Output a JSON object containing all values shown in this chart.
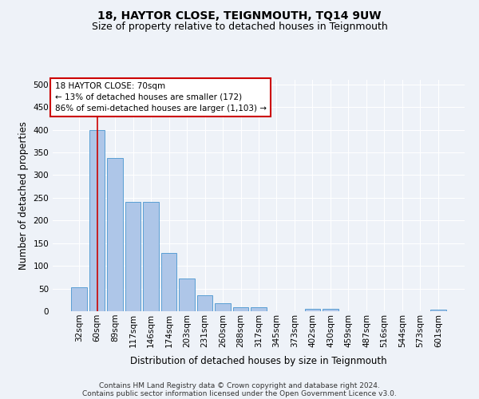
{
  "title": "18, HAYTOR CLOSE, TEIGNMOUTH, TQ14 9UW",
  "subtitle": "Size of property relative to detached houses in Teignmouth",
  "xlabel": "Distribution of detached houses by size in Teignmouth",
  "ylabel": "Number of detached properties",
  "categories": [
    "32sqm",
    "60sqm",
    "89sqm",
    "117sqm",
    "146sqm",
    "174sqm",
    "203sqm",
    "231sqm",
    "260sqm",
    "288sqm",
    "317sqm",
    "345sqm",
    "373sqm",
    "402sqm",
    "430sqm",
    "459sqm",
    "487sqm",
    "516sqm",
    "544sqm",
    "573sqm",
    "601sqm"
  ],
  "values": [
    52,
    400,
    338,
    241,
    241,
    128,
    72,
    35,
    17,
    8,
    8,
    0,
    0,
    6,
    6,
    0,
    0,
    0,
    0,
    0,
    4
  ],
  "bar_color": "#aec6e8",
  "bar_edge_color": "#5a9fd4",
  "vline_color": "#cc0000",
  "vline_pos": 1.5,
  "annotation_text": "18 HAYTOR CLOSE: 70sqm\n← 13% of detached houses are smaller (172)\n86% of semi-detached houses are larger (1,103) →",
  "annotation_box_color": "#ffffff",
  "annotation_box_edge": "#cc0000",
  "ylim": [
    0,
    510
  ],
  "yticks": [
    0,
    50,
    100,
    150,
    200,
    250,
    300,
    350,
    400,
    450,
    500
  ],
  "background_color": "#eef2f8",
  "grid_color": "#ffffff",
  "footer_line1": "Contains HM Land Registry data © Crown copyright and database right 2024.",
  "footer_line2": "Contains public sector information licensed under the Open Government Licence v3.0.",
  "title_fontsize": 10,
  "subtitle_fontsize": 9,
  "xlabel_fontsize": 8.5,
  "ylabel_fontsize": 8.5,
  "tick_fontsize": 7.5,
  "annotation_fontsize": 7.5,
  "footer_fontsize": 6.5
}
